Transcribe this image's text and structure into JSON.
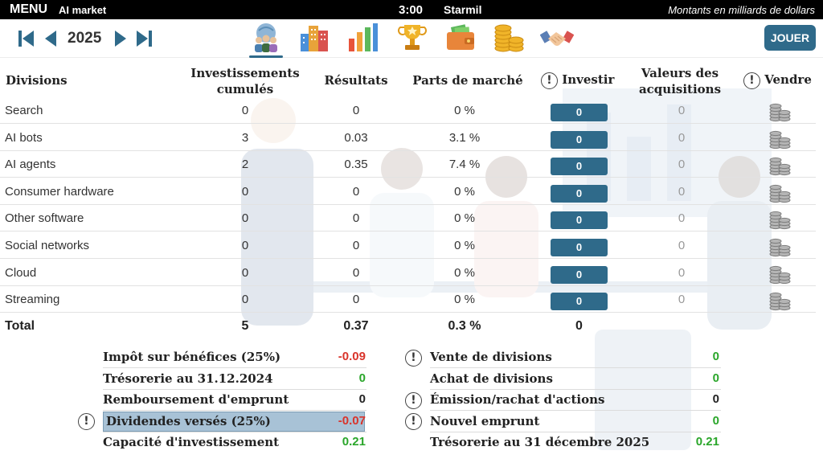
{
  "topbar": {
    "menu": "MENU",
    "app": "AI market",
    "clock": "3:00",
    "player": "Starmil",
    "units": "Montants en milliards de dollars"
  },
  "toolbar": {
    "year": "2025",
    "play_label": "JOUER",
    "tabs": [
      "team-icon",
      "city-buildings-icon",
      "bar-chart-icon",
      "trophy-icon",
      "wallet-icon",
      "coins-icon",
      "handshake-icon"
    ]
  },
  "table": {
    "headers": {
      "divisions": "Divisions",
      "investments": "Investissements cumulés",
      "results": "Résultats",
      "market_share": "Parts de marché",
      "invest": "Investir",
      "acquisitions": "Valeurs des acquisitions",
      "sell": "Vendre"
    },
    "rows": [
      {
        "name": "Search",
        "inv": "0",
        "res": "0",
        "pm": "0 %",
        "input": "0",
        "acq": "0"
      },
      {
        "name": "AI bots",
        "inv": "3",
        "res": "0.03",
        "pm": "3.1 %",
        "input": "0",
        "acq": "0"
      },
      {
        "name": "AI agents",
        "inv": "2",
        "res": "0.35",
        "pm": "7.4 %",
        "input": "0",
        "acq": "0"
      },
      {
        "name": "Consumer hardware",
        "inv": "0",
        "res": "0",
        "pm": "0 %",
        "input": "0",
        "acq": "0"
      },
      {
        "name": "Other software",
        "inv": "0",
        "res": "0",
        "pm": "0 %",
        "input": "0",
        "acq": "0"
      },
      {
        "name": "Social networks",
        "inv": "0",
        "res": "0",
        "pm": "0 %",
        "input": "0",
        "acq": "0"
      },
      {
        "name": "Cloud",
        "inv": "0",
        "res": "0",
        "pm": "0 %",
        "input": "0",
        "acq": "0"
      },
      {
        "name": "Streaming",
        "inv": "0",
        "res": "0",
        "pm": "0 %",
        "input": "0",
        "acq": "0"
      }
    ],
    "total": {
      "label": "Total",
      "inv": "5",
      "res": "0.37",
      "pm": "0.3 %",
      "invest": "0"
    }
  },
  "summary": {
    "left": [
      {
        "label": "Impôt sur bénéfices (25%)",
        "value": "-0.09",
        "color": "#d9342b"
      },
      {
        "label": "Trésorerie au 31.12.2024",
        "value": "0",
        "color": "#2aa62a"
      },
      {
        "label": "Remboursement d'emprunt",
        "value": "0",
        "color": "#222222"
      },
      {
        "label": "Dividendes versés (25%)",
        "value": "-0.07",
        "color": "#d9342b"
      },
      {
        "label": "Capacité d'investissement",
        "value": "0.21",
        "color": "#2aa62a"
      }
    ],
    "right": [
      {
        "label": "Vente de divisions",
        "value": "0",
        "color": "#2aa62a"
      },
      {
        "label": "Achat de divisions",
        "value": "0",
        "color": "#2aa62a"
      },
      {
        "label": "Émission/rachat d'actions",
        "value": "0",
        "color": "#222222"
      },
      {
        "label": "Nouvel emprunt",
        "value": "0",
        "color": "#2aa62a"
      },
      {
        "label": "Trésorerie au 31 décembre 2025",
        "value": "0.21",
        "color": "#2aa62a"
      }
    ]
  },
  "colors": {
    "accent": "#2f6a8a",
    "negative": "#d9342b",
    "positive": "#2aa62a",
    "highlight": "#a8c2d6"
  }
}
